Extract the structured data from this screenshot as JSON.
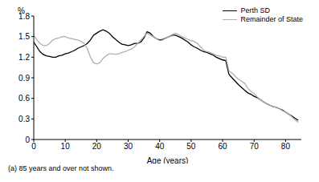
{
  "chart_data": {
    "type": "line",
    "y_label": "%",
    "x_label": "Age (years)",
    "annotation": "(a) 85 years and over not shown.",
    "legend": "top-right",
    "grid": false,
    "xlim": [
      0,
      85
    ],
    "xticks": [
      0,
      10,
      20,
      30,
      40,
      50,
      60,
      70,
      80
    ],
    "ylim": [
      0,
      1.8
    ],
    "yticks": [
      0,
      0.3,
      0.6,
      0.9,
      1.2,
      1.5,
      1.8
    ],
    "x": [
      0,
      1,
      2,
      3,
      4,
      5,
      6,
      7,
      8,
      9,
      10,
      11,
      12,
      13,
      14,
      15,
      16,
      17,
      18,
      19,
      20,
      21,
      22,
      23,
      24,
      25,
      26,
      27,
      28,
      29,
      30,
      31,
      32,
      33,
      34,
      35,
      36,
      37,
      38,
      39,
      40,
      41,
      42,
      43,
      44,
      45,
      46,
      47,
      48,
      49,
      50,
      51,
      52,
      53,
      54,
      55,
      56,
      57,
      58,
      59,
      60,
      61,
      62,
      63,
      64,
      65,
      66,
      67,
      68,
      69,
      70,
      71,
      72,
      73,
      74,
      75,
      76,
      77,
      78,
      79,
      80,
      81,
      82,
      83,
      84
    ],
    "series": [
      {
        "name": "Perth SD",
        "color": "#000000",
        "values": [
          1.42,
          1.35,
          1.28,
          1.24,
          1.22,
          1.21,
          1.2,
          1.2,
          1.22,
          1.23,
          1.25,
          1.26,
          1.28,
          1.3,
          1.33,
          1.35,
          1.37,
          1.4,
          1.45,
          1.52,
          1.55,
          1.58,
          1.6,
          1.58,
          1.55,
          1.5,
          1.46,
          1.42,
          1.39,
          1.38,
          1.37,
          1.38,
          1.4,
          1.4,
          1.42,
          1.48,
          1.57,
          1.55,
          1.5,
          1.47,
          1.45,
          1.46,
          1.48,
          1.5,
          1.52,
          1.52,
          1.5,
          1.48,
          1.45,
          1.42,
          1.38,
          1.35,
          1.33,
          1.3,
          1.28,
          1.27,
          1.25,
          1.23,
          1.2,
          1.18,
          1.16,
          1.15,
          0.95,
          0.9,
          0.85,
          0.8,
          0.76,
          0.72,
          0.68,
          0.66,
          0.63,
          0.61,
          0.58,
          0.55,
          0.52,
          0.5,
          0.48,
          0.47,
          0.45,
          0.43,
          0.4,
          0.37,
          0.34,
          0.31,
          0.28
        ]
      },
      {
        "name": "Remainder of State",
        "color": "#b0b0b0",
        "values": [
          1.52,
          1.45,
          1.4,
          1.37,
          1.37,
          1.4,
          1.45,
          1.47,
          1.48,
          1.5,
          1.5,
          1.48,
          1.47,
          1.46,
          1.45,
          1.43,
          1.4,
          1.33,
          1.2,
          1.12,
          1.1,
          1.12,
          1.18,
          1.22,
          1.25,
          1.25,
          1.24,
          1.25,
          1.27,
          1.28,
          1.3,
          1.32,
          1.35,
          1.4,
          1.45,
          1.5,
          1.55,
          1.52,
          1.5,
          1.47,
          1.44,
          1.45,
          1.48,
          1.5,
          1.53,
          1.55,
          1.53,
          1.5,
          1.48,
          1.46,
          1.44,
          1.43,
          1.4,
          1.35,
          1.3,
          1.28,
          1.27,
          1.25,
          1.23,
          1.22,
          1.2,
          1.2,
          1.0,
          0.97,
          0.92,
          0.88,
          0.85,
          0.82,
          0.75,
          0.7,
          0.67,
          0.62,
          0.58,
          0.55,
          0.52,
          0.5,
          0.48,
          0.47,
          0.45,
          0.42,
          0.4,
          0.37,
          0.33,
          0.29,
          0.25
        ]
      }
    ]
  }
}
